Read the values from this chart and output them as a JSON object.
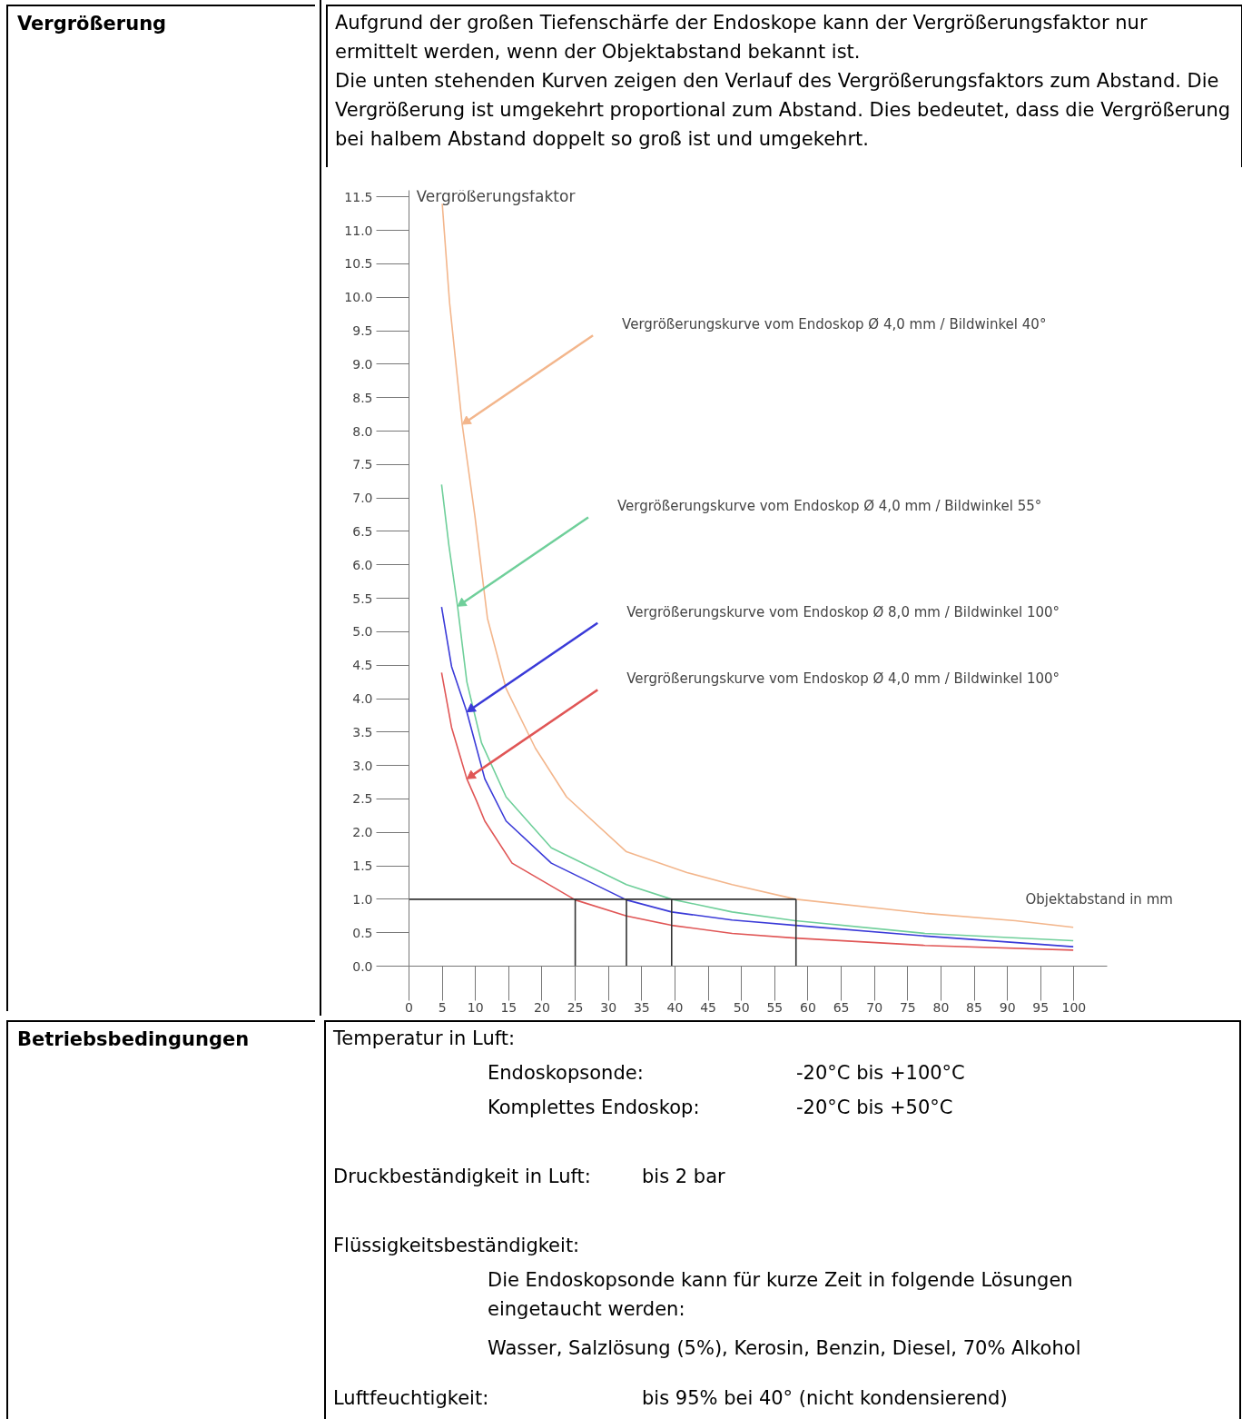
{
  "chart_data": {
    "type": "line",
    "title": "Vergrößerung",
    "subtitle": "Aufgrund der großen Tiefenschärfe der Endoskope kann der Vergrößerungsfaktor nur ermittelt werden, wenn der Objektabstand bekannt ist.\nDie unten stehenden Kurven zeigen den Verlauf des Vergrößerungsfaktors zum Abstand. Die Vergrößerung ist umgekehrt proportional zum Abstand. Dies bedeutet, dass die Vergrößerung bei halbem Abstand doppelt so groß ist und umgekehrt.",
    "xlabel": "Objektabstand in mm",
    "ylabel": "Vergrößerungsfaktor",
    "xlim": [
      0,
      105
    ],
    "ylim": [
      0,
      11.6
    ],
    "xticks": [
      0,
      5,
      10,
      15,
      20,
      25,
      30,
      35,
      40,
      45,
      50,
      55,
      60,
      65,
      70,
      75,
      80,
      85,
      90,
      95,
      100
    ],
    "yticks": [
      {
        "value": 0,
        "label": "0.0"
      },
      0.5,
      {
        "value": 1,
        "label": "1.0"
      },
      1.5,
      {
        "value": 2,
        "label": "2.0"
      },
      2.5,
      {
        "value": 3,
        "label": "3.0"
      },
      3.5,
      {
        "value": 4,
        "label": "4.0"
      },
      4.5,
      {
        "value": 5,
        "label": "5.0"
      },
      5.5,
      {
        "value": 6,
        "label": "6.0"
      },
      6.5,
      {
        "value": 7,
        "label": "7.0"
      },
      7.5,
      {
        "value": 8,
        "label": "8.0"
      },
      8.5,
      {
        "value": 9,
        "label": "9.0"
      },
      9.5,
      {
        "value": 10,
        "label": "10.0"
      },
      10.5,
      {
        "value": 11,
        "label": "11.0"
      },
      11.5
    ],
    "grid": false,
    "series": [
      {
        "color": "#f3b68c",
        "x": [
          5,
          6.1,
          8.0,
          9.9,
          11.8,
          14.6,
          19,
          23.7,
          32.7,
          41.8,
          48.6,
          58.2,
          77.6,
          91.2,
          99.9
        ],
        "values": [
          11.4,
          9.92,
          8.1,
          6.74,
          5.2,
          4.15,
          3.26,
          2.53,
          1.71,
          1.4,
          1.22,
          1.0,
          0.79,
          0.68,
          0.58
        ]
      },
      {
        "color": "#6fcf9a",
        "x": [
          4.9,
          6.0,
          7.3,
          8.7,
          10.9,
          14.6,
          21.4,
          32.7,
          39.5,
          48.6,
          58.1,
          77.6,
          99.9
        ],
        "values": [
          7.2,
          6.29,
          5.38,
          4.25,
          3.34,
          2.53,
          1.77,
          1.22,
          1.0,
          0.81,
          0.68,
          0.49,
          0.38
        ]
      },
      {
        "color": "#3a3ad8",
        "x": [
          4.9,
          6.4,
          8.7,
          11.4,
          14.6,
          21.4,
          32.7,
          39.5,
          48.6,
          58.1,
          77.6,
          99.9
        ],
        "values": [
          5.37,
          4.48,
          3.8,
          2.8,
          2.17,
          1.54,
          0.99,
          0.81,
          0.69,
          0.61,
          0.45,
          0.29
        ]
      },
      {
        "color": "#e05656",
        "x": [
          4.9,
          6.4,
          8.7,
          10.2,
          11.4,
          15.5,
          25,
          32.7,
          39.5,
          48.6,
          58.1,
          77.6,
          99.9
        ],
        "values": [
          4.39,
          3.57,
          2.8,
          2.46,
          2.17,
          1.54,
          0.99,
          0.75,
          0.61,
          0.49,
          0.42,
          0.31,
          0.24
        ]
      },
      {
        "color": "#333333",
        "x": [
          0,
          58.2
        ],
        "values": [
          1,
          1
        ]
      },
      {
        "color": "#333333",
        "x": [
          25,
          25
        ],
        "values": [
          0,
          1
        ]
      },
      {
        "color": "#333333",
        "x": [
          32.7,
          32.7
        ],
        "values": [
          0,
          1
        ]
      },
      {
        "color": "#333333",
        "x": [
          39.5,
          39.5
        ],
        "values": [
          0,
          1
        ]
      },
      {
        "color": "#333333",
        "x": [
          58.2,
          58.2
        ],
        "values": [
          0,
          1
        ]
      }
    ],
    "annotations": [
      "Vergrößerungskurve vom Endoskop Ø 4,0 mm / Bildwinkel 40°",
      "Vergrößerungskurve vom Endoskop Ø 4,0 mm / Bildwinkel 55°",
      "Vergrößerungskurve vom Endoskop Ø 8,0 mm / Bildwinkel 100°",
      "Vergrößerungskurve vom Endoskop Ø 4,0 mm / Bildwinkel 100°",
      "Betriebsbedingungen",
      "Temperatur in Luft:",
      "Endoskopsonde:",
      "-20°C bis +100°C",
      "Komplettes Endoskop:",
      "-20°C bis +50°C",
      "Druckbeständigkeit in Luft:",
      "bis 2 bar",
      "Flüssigkeitsbeständigkeit:",
      "Die Endoskopsonde kann für kurze Zeit in folgende Lösungen eingetaucht werden:",
      "Wasser, Salzlösung (5%), Kerosin, Benzin, Diesel, 70% Alkohol",
      "Luftfeuchtigkeit:",
      "bis 95% bei 40° (nicht kondensierend)"
    ]
  }
}
